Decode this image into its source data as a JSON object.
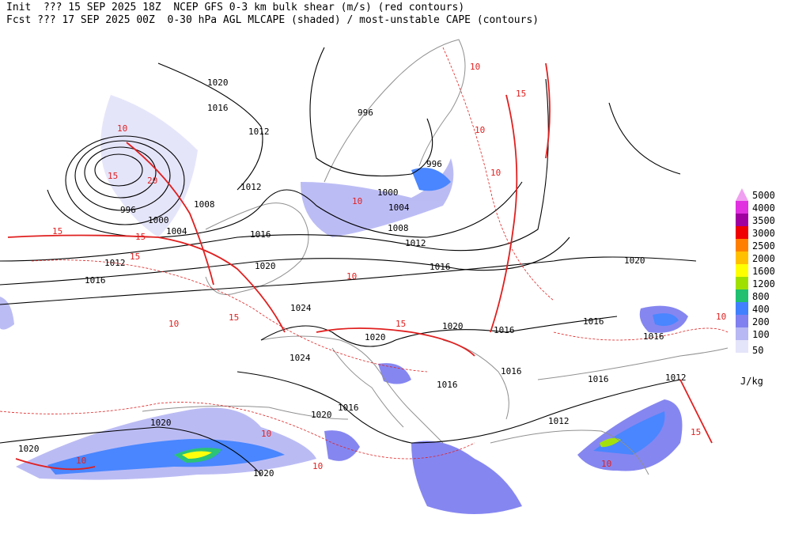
{
  "header": {
    "line1": "Init  ??? 15 SEP 2025 18Z  NCEP GFS 0-3 km bulk shear (m/s) (red contours)",
    "line2": "Fcst ??? 17 SEP 2025 00Z  0-30 hPa AGL MLCAPE (shaded) / most-unstable CAPE (contours)"
  },
  "legend": {
    "levels": [
      "5000",
      "4000",
      "3500",
      "3000",
      "2500",
      "2000",
      "1600",
      "1200",
      "800",
      "400",
      "200",
      "100",
      "50"
    ],
    "colors": [
      "#f0a0f0",
      "#e030e0",
      "#a000a0",
      "#f00000",
      "#ff8000",
      "#ffc000",
      "#ffff00",
      "#a0e000",
      "#20c070",
      "#4080ff",
      "#8080f0",
      "#b8b8f4",
      "#e4e4fa"
    ],
    "unit": "J/kg"
  },
  "isobar_labels": [
    "1020",
    "1016",
    "1012",
    "996",
    "1012",
    "1000",
    "1004",
    "1008",
    "996",
    "1016",
    "1012",
    "1016",
    "1020",
    "1000",
    "1004",
    "1008",
    "1012",
    "996",
    "1016",
    "1020",
    "1024",
    "1020",
    "1016",
    "1016",
    "1016",
    "1020",
    "1024",
    "1016",
    "1016",
    "1016",
    "1012",
    "1016",
    "1020",
    "1020",
    "1012",
    "1020",
    "1020"
  ],
  "shear_labels": [
    "10",
    "15",
    "20",
    "15",
    "15",
    "15",
    "10",
    "15",
    "10",
    "15",
    "10",
    "10",
    "10",
    "15",
    "10",
    "10",
    "10",
    "10",
    "15",
    "10",
    "10"
  ]
}
